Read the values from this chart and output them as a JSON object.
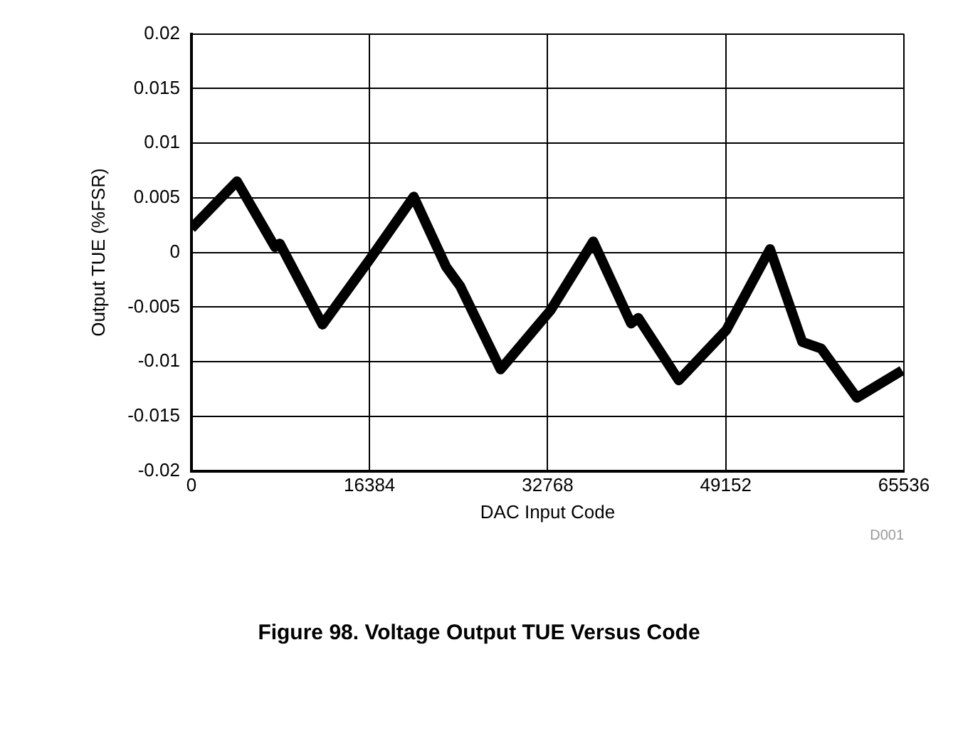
{
  "chart_data": {
    "type": "line",
    "title": "Figure 98. Voltage Output TUE Versus Code",
    "xlabel": "DAC Input Code",
    "ylabel": "Output TUE (%FSR)",
    "annotations": [
      "D001"
    ],
    "x": [
      0,
      4190,
      7690,
      8130,
      12060,
      16430,
      20450,
      23420,
      24730,
      28440,
      33030,
      36960,
      40440,
      41110,
      44830,
      49200,
      53220,
      56190,
      57930,
      61210,
      65370
    ],
    "series": [
      {
        "color": "#000000",
        "values": [
          0.0022,
          0.0065,
          0.0005,
          0.0008,
          -0.0066,
          -0.0006,
          0.0051,
          -0.0013,
          -0.0031,
          -0.0107,
          -0.0053,
          0.001,
          -0.0065,
          -0.006,
          -0.0117,
          -0.0071,
          0.0003,
          -0.0082,
          -0.0088,
          -0.0133,
          -0.0108
        ]
      }
    ],
    "xlim": [
      0,
      65536
    ],
    "xticks": [
      0,
      16384,
      32768,
      49152,
      65536
    ],
    "ylim": [
      -0.02,
      0.02
    ],
    "yticks": [
      -0.02,
      -0.015,
      -0.01,
      -0.005,
      0,
      0.005,
      0.01,
      0.015,
      0.02
    ],
    "grid": true,
    "legend": false,
    "marker": "none"
  }
}
